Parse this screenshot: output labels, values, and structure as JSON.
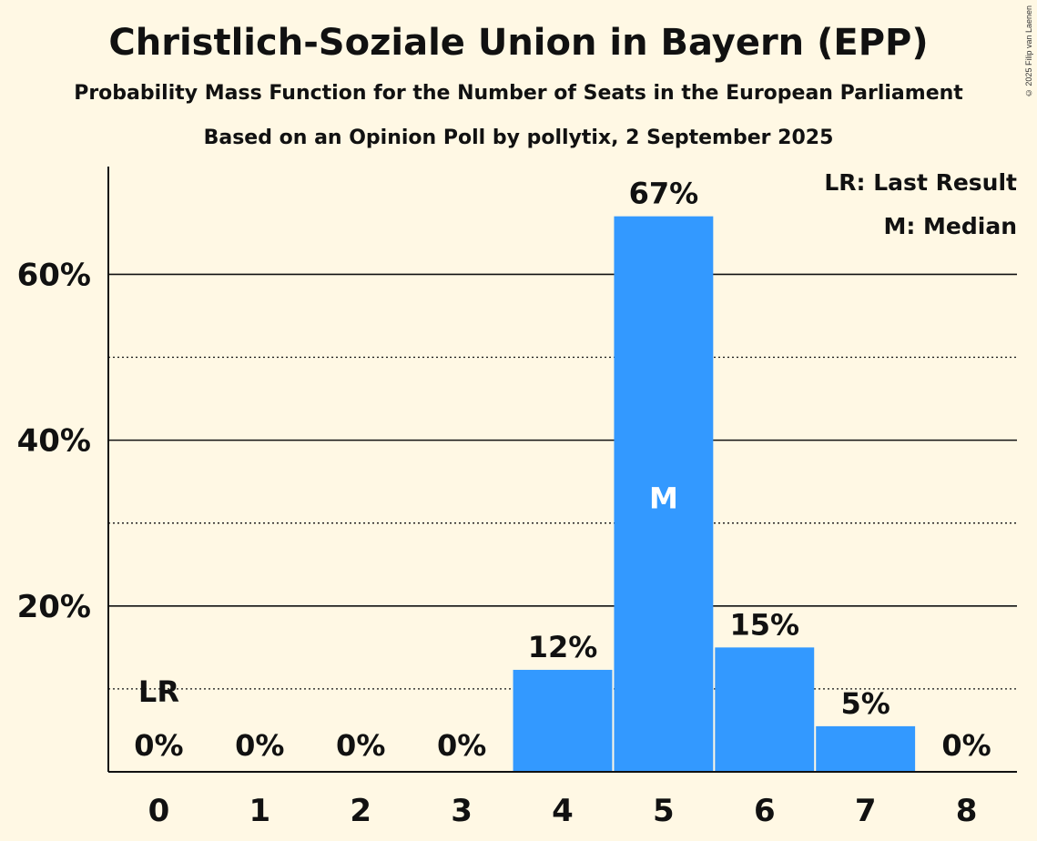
{
  "title": "Christlich-Soziale Union in Bayern (EPP)",
  "subtitle": "Probability Mass Function for the Number of Seats in the European Parliament",
  "subtitle2": "Based on an Opinion Poll by pollytix, 2 September 2025",
  "copyright": "© 2025 Filip van Laenen",
  "legend": {
    "last_result": "LR: Last Result",
    "median": "M: Median"
  },
  "colors": {
    "bar": "#3399ff",
    "background": "#fff8e4",
    "text": "#111111"
  },
  "chart_data": {
    "type": "bar",
    "categories": [
      "0",
      "1",
      "2",
      "3",
      "4",
      "5",
      "6",
      "7",
      "8"
    ],
    "values": [
      0,
      0,
      0,
      0,
      12.3,
      67,
      15,
      5.5,
      0
    ],
    "value_labels": [
      "0%",
      "0%",
      "0%",
      "0%",
      "12%",
      "67%",
      "15%",
      "5%",
      "0%"
    ],
    "ylim": [
      0,
      73
    ],
    "yticks": [
      20,
      40,
      60
    ],
    "ytick_labels": [
      "20%",
      "40%",
      "60%"
    ],
    "minor_gridlines": [
      10,
      30,
      50
    ],
    "last_result_category": "0",
    "last_result_label": "LR",
    "median_category": "5",
    "median_label": "M",
    "legend_position": "top-right"
  }
}
